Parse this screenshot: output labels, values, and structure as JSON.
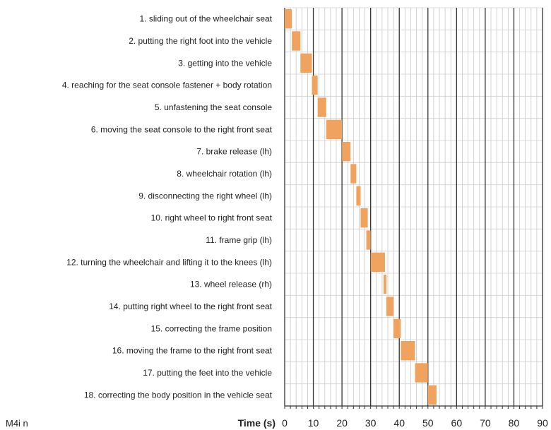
{
  "chart_data": {
    "type": "bar",
    "orientation": "horizontal-gantt",
    "categories": [
      "1. sliding out of the wheelchair seat",
      "2. putting the right foot into the vehicle",
      "3. getting into the vehicle",
      "4. reaching for the seat console fastener + body rotation",
      "5. unfastening the seat console",
      "6. moving the seat console to the right front seat",
      "7. brake release (lh)",
      "8. wheelchair rotation (lh)",
      "9. disconnecting the right wheel (lh)",
      "10. right wheel to right front seat",
      "11. frame grip (lh)",
      "12. turning the wheelchair and lifting it to the knees (lh)",
      "13. wheel release (rh)",
      "14. putting right wheel to the right front seat",
      "15. correcting the frame position",
      "16. moving the frame to the right front seat",
      "17. putting the feet into the vehicle",
      "18. correcting the body position in the vehicle seat"
    ],
    "series": [
      {
        "start": [
          0,
          2.5,
          5.5,
          9.5,
          11.5,
          14.5,
          20.0,
          23.0,
          25.0,
          26.5,
          28.5,
          30.0,
          34.5,
          35.5,
          38.0,
          40.5,
          45.5,
          50.0
        ],
        "end": [
          2.5,
          5.5,
          9.5,
          11.5,
          14.5,
          20.0,
          23.0,
          25.0,
          26.5,
          29.0,
          30.0,
          35.0,
          35.5,
          38.0,
          40.5,
          45.5,
          50.0,
          53.0
        ]
      }
    ],
    "xlabel": "Time (s)",
    "xlim": [
      0,
      90
    ],
    "xticks": [
      "0",
      "10",
      "20",
      "30",
      "40",
      "50",
      "60",
      "70",
      "80",
      "90"
    ],
    "major_grid_step": 10,
    "minor_grid_step": 2,
    "grid": true,
    "bar_color": "#f0a35f"
  },
  "note": "M4i n"
}
